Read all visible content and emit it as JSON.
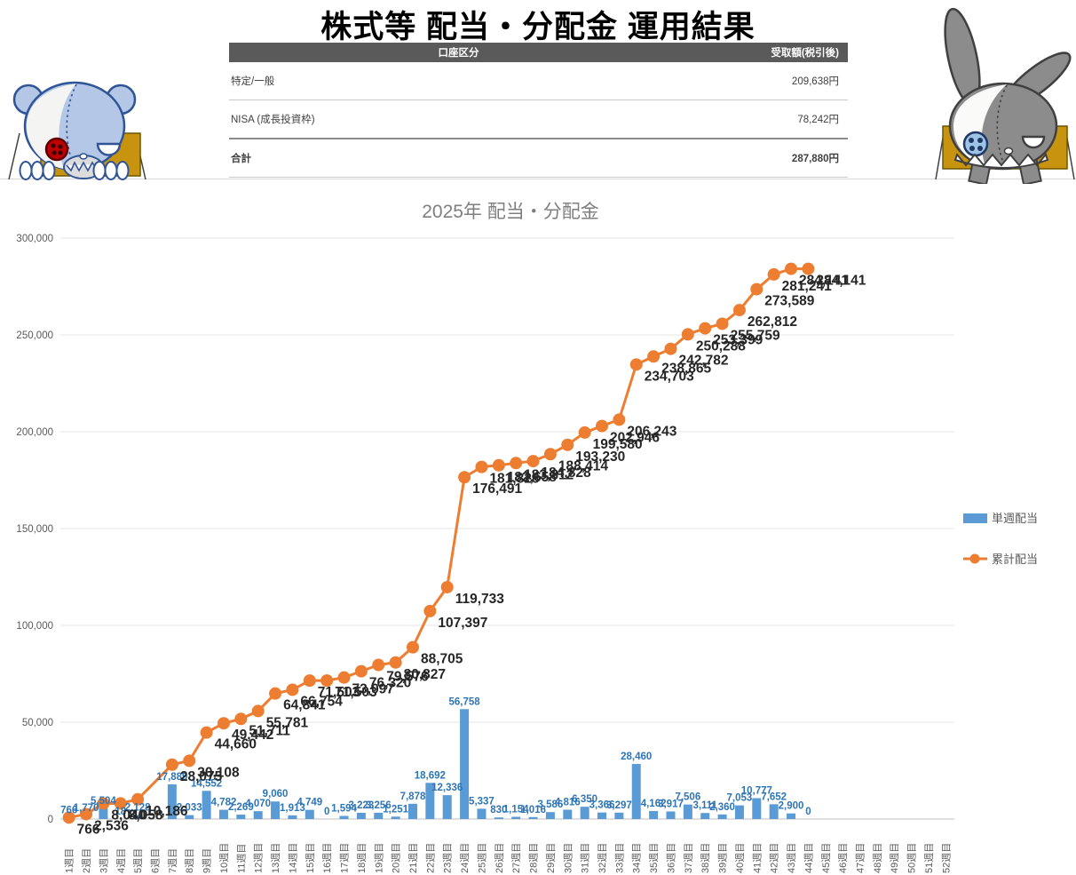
{
  "page_title": "株式等 配当・分配金 運用結果",
  "table": {
    "headers": [
      "口座区分",
      "受取額(税引後)"
    ],
    "rows": [
      {
        "label": "特定/一般",
        "value": "209,638円"
      },
      {
        "label": "NISA (成長投資枠)",
        "value": "78,242円"
      },
      {
        "label": "合計",
        "value": "287,880円"
      }
    ]
  },
  "mascots": {
    "left": "patched-bear-mascot",
    "right": "patched-rabbit-mascot"
  },
  "chart_data": {
    "type": "bar",
    "combo": "bar+line",
    "title": "2025年 配当・分配金",
    "categories": [
      "1週目",
      "2週目",
      "3週目",
      "4週目",
      "5週目",
      "6週目",
      "7週目",
      "8週目",
      "9週目",
      "10週目",
      "11週目",
      "12週目",
      "13週目",
      "14週目",
      "15週目",
      "16週目",
      "17週目",
      "18週目",
      "19週目",
      "20週目",
      "21週目",
      "22週目",
      "23週目",
      "24週目",
      "25週目",
      "26週目",
      "27週目",
      "28週目",
      "29週目",
      "30週目",
      "31週目",
      "32週目",
      "33週目",
      "34週目",
      "35週目",
      "36週目",
      "37週目",
      "38週目",
      "39週目",
      "40週目",
      "41週目",
      "42週目",
      "43週目",
      "44週目",
      "45週目",
      "46週目",
      "47週目",
      "48週目",
      "49週目",
      "50週目",
      "51週目",
      "52週目"
    ],
    "series": [
      {
        "name": "単週配当",
        "type": "bar",
        "color": "#5B9BD5",
        "label_color": "#2E75B6",
        "values": [
          766,
          1770,
          5504,
          18,
          2128,
          null,
          17889,
          2033,
          14552,
          4782,
          2269,
          4070,
          9060,
          1913,
          4749,
          0,
          1594,
          3223,
          3256,
          1251,
          7878,
          18692,
          12336,
          56758,
          5337,
          830,
          1154,
          1016,
          3586,
          4816,
          6350,
          3366,
          3297,
          28460,
          4162,
          3917,
          7506,
          3111,
          2360,
          7053,
          10777,
          7652,
          2900,
          0,
          null,
          null,
          null,
          null,
          null,
          null,
          null,
          null
        ]
      },
      {
        "name": "累計配当",
        "type": "line",
        "color": "#ED7D31",
        "label_color": "#262626",
        "values": [
          766,
          2536,
          8040,
          8058,
          10186,
          null,
          28075,
          30108,
          44660,
          49442,
          51711,
          55781,
          64841,
          66754,
          71503,
          71503,
          73097,
          76320,
          79576,
          80827,
          88705,
          107397,
          119733,
          176491,
          181828,
          182658,
          183812,
          184828,
          188414,
          193230,
          199580,
          202946,
          206243,
          234703,
          238865,
          242782,
          250288,
          253399,
          255759,
          262812,
          273589,
          281241,
          284141,
          284141,
          null,
          null,
          null,
          null,
          null,
          null,
          null,
          null
        ]
      }
    ],
    "xlabel": "",
    "ylabel": "",
    "ylim": [
      0,
      300000
    ],
    "yticks": [
      0,
      50000,
      100000,
      150000,
      200000,
      250000,
      300000
    ],
    "grid": true,
    "legend_position": "right"
  }
}
